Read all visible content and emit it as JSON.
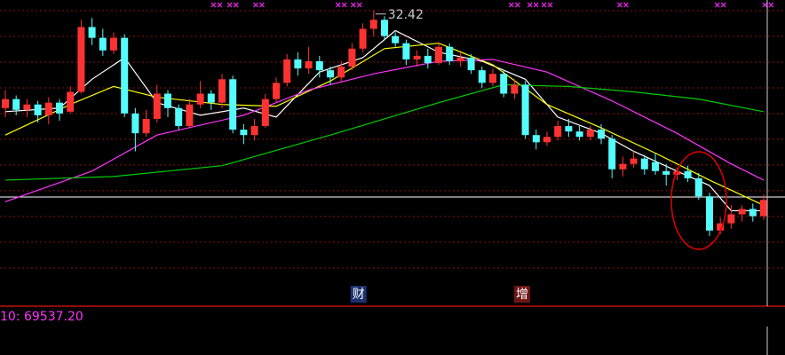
{
  "chart_data": {
    "type": "candlestick",
    "ylim": [
      16,
      33
    ],
    "gridlines": [
      32.41,
      30.98,
      29.55,
      28.12,
      26.69,
      25.27,
      23.84,
      22.41,
      20.98,
      19.55,
      18.12
    ],
    "up_color": "#ff3232",
    "down_color": "#54fcfc",
    "open": [
      27.0,
      27.5,
      26.9,
      27.2,
      26.6,
      27.3,
      26.8,
      27.9,
      31.5,
      30.9,
      30.2,
      30.9,
      26.7,
      25.6,
      26.4,
      27.8,
      27.0,
      26.0,
      27.2,
      27.8,
      27.3,
      28.6,
      25.8,
      25.5,
      26.0,
      27.5,
      28.4,
      29.7,
      29.2,
      29.6,
      29.1,
      28.7,
      29.3,
      30.3,
      31.4,
      31.9,
      31.0,
      30.6,
      29.7,
      29.9,
      29.5,
      30.4,
      29.6,
      29.8,
      29.1,
      28.4,
      28.9,
      27.8,
      28.3,
      25.5,
      25.1,
      25.4,
      26.0,
      25.7,
      25.4,
      25.8,
      25.3,
      23.6,
      23.9,
      24.2,
      24.0,
      23.5,
      23.3,
      23.5,
      23.1,
      22.1,
      20.2,
      20.6,
      21.1,
      21.4,
      21.0
    ],
    "close": [
      27.5,
      26.9,
      27.2,
      26.6,
      27.3,
      26.7,
      27.9,
      31.5,
      30.9,
      30.2,
      30.9,
      26.7,
      25.6,
      26.4,
      27.8,
      27.0,
      26.0,
      27.2,
      27.8,
      27.3,
      28.6,
      25.8,
      25.5,
      26.0,
      27.5,
      28.4,
      29.7,
      29.2,
      29.6,
      29.1,
      28.7,
      29.3,
      30.3,
      31.4,
      31.9,
      31.0,
      30.6,
      29.7,
      29.9,
      29.5,
      30.4,
      29.6,
      29.8,
      29.1,
      28.4,
      28.9,
      27.8,
      28.3,
      25.5,
      25.1,
      25.4,
      26.0,
      25.7,
      25.4,
      25.8,
      25.3,
      23.6,
      23.9,
      24.2,
      23.6,
      23.5,
      23.3,
      23.5,
      23.1,
      22.1,
      20.2,
      20.6,
      21.1,
      21.4,
      21.0,
      21.9
    ],
    "high": [
      28.0,
      27.7,
      27.5,
      27.4,
      27.6,
      27.5,
      28.2,
      31.9,
      32.0,
      31.4,
      31.2,
      31.1,
      27.0,
      26.9,
      28.3,
      28.0,
      27.2,
      27.5,
      28.5,
      28.0,
      28.9,
      28.8,
      26.1,
      26.4,
      27.8,
      28.7,
      30.0,
      30.1,
      30.4,
      29.9,
      29.3,
      29.6,
      30.6,
      31.7,
      32.42,
      32.1,
      31.2,
      30.8,
      30.2,
      30.3,
      30.6,
      30.6,
      30.1,
      30.0,
      29.3,
      29.2,
      29.1,
      28.6,
      28.5,
      25.8,
      25.7,
      26.3,
      26.4,
      26.0,
      26.0,
      26.1,
      25.5,
      24.3,
      24.6,
      24.4,
      24.5,
      23.9,
      23.7,
      23.8,
      23.4,
      22.3,
      20.9,
      21.6,
      21.6,
      21.7,
      22.2
    ],
    "low": [
      26.5,
      26.6,
      26.5,
      26.2,
      26.1,
      26.3,
      26.7,
      27.8,
      30.5,
      29.9,
      30.0,
      26.5,
      24.6,
      25.4,
      26.2,
      26.5,
      25.8,
      25.9,
      27.0,
      26.9,
      27.0,
      25.6,
      25.0,
      25.2,
      25.9,
      27.3,
      28.2,
      28.8,
      28.9,
      28.7,
      28.3,
      28.4,
      29.1,
      30.1,
      31.0,
      30.8,
      30.4,
      29.4,
      29.3,
      29.2,
      29.4,
      29.4,
      29.3,
      28.9,
      28.1,
      28.2,
      27.6,
      27.5,
      25.3,
      24.7,
      24.9,
      25.2,
      25.4,
      25.2,
      25.2,
      25.0,
      23.1,
      23.2,
      23.7,
      23.3,
      23.3,
      22.7,
      23.0,
      22.9,
      21.9,
      19.9,
      20.0,
      20.3,
      20.7,
      20.7,
      20.8
    ],
    "lines": [
      {
        "color": "#ffffff",
        "x": [
          0,
          5,
          8,
          11,
          14,
          18,
          22,
          25,
          29,
          33,
          36,
          40,
          44,
          48,
          51,
          55,
          58,
          62,
          65,
          67,
          70
        ],
        "values": [
          26.8,
          27.0,
          28.6,
          29.8,
          27.3,
          26.6,
          27.0,
          26.5,
          29.0,
          29.8,
          31.3,
          30.1,
          29.6,
          28.6,
          26.5,
          25.6,
          24.6,
          23.5,
          22.7,
          21.3,
          21.3
        ]
      },
      {
        "color": "#ffff00",
        "x": [
          0,
          6,
          10,
          14,
          20,
          25,
          30,
          35,
          40,
          45,
          50,
          55,
          60,
          65,
          70
        ],
        "values": [
          25.5,
          27.2,
          28.2,
          27.6,
          27.2,
          27.1,
          28.5,
          30.3,
          30.6,
          29.4,
          27.2,
          25.9,
          24.5,
          23.0,
          21.6
        ]
      },
      {
        "color": "#ff33ff",
        "x": [
          0,
          8,
          14,
          22,
          28,
          34,
          40,
          45,
          50,
          56,
          62,
          67,
          70
        ],
        "values": [
          21.8,
          23.5,
          25.5,
          26.6,
          28.0,
          28.9,
          29.6,
          29.7,
          29.0,
          27.4,
          25.6,
          23.9,
          23.0
        ]
      },
      {
        "color": "#00cc00",
        "x": [
          0,
          10,
          20,
          30,
          40,
          46,
          52,
          58,
          64,
          70
        ],
        "values": [
          23.0,
          23.2,
          23.8,
          25.5,
          27.3,
          28.3,
          28.2,
          27.9,
          27.5,
          26.8
        ]
      }
    ],
    "hline": {
      "value": 22.06,
      "color": "#ffffff"
    },
    "max_annotation": {
      "value": 32.42
    },
    "signals": [
      19.5,
      21,
      23.4,
      31,
      32.4,
      47,
      48.7,
      50,
      57,
      66,
      70.4
    ],
    "events": [
      {
        "x": 32.6,
        "label": "财",
        "color": "#1c2f6e"
      },
      {
        "x": 47.7,
        "label": "增",
        "color": "#6e1414"
      }
    ],
    "sub_chart_label": "10: 69537.20"
  }
}
